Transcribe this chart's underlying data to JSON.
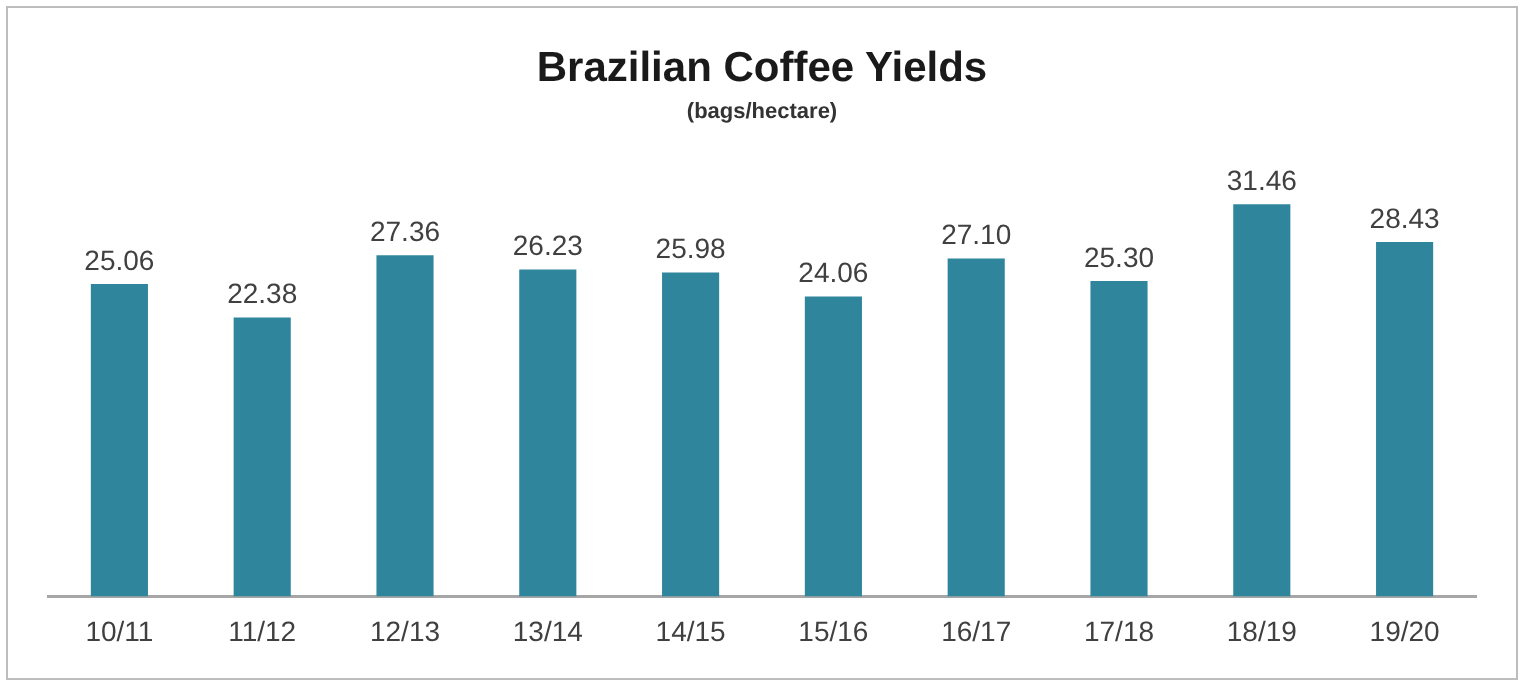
{
  "chart_data": {
    "type": "bar",
    "title": "Brazilian Coffee Yields",
    "subtitle": "(bags/hectare)",
    "categories": [
      "10/11",
      "11/12",
      "12/13",
      "13/14",
      "14/15",
      "15/16",
      "16/17",
      "17/18",
      "18/19",
      "19/20"
    ],
    "values": [
      25.06,
      22.38,
      27.36,
      26.23,
      25.98,
      24.06,
      27.1,
      25.3,
      31.46,
      28.43
    ],
    "value_labels": [
      "25.06",
      "22.38",
      "27.36",
      "26.23",
      "25.98",
      "24.06",
      "27.10",
      "25.30",
      "31.46",
      "28.43"
    ],
    "color": "#2f869c",
    "grid": false,
    "legend": false,
    "tick_labels": "x"
  }
}
